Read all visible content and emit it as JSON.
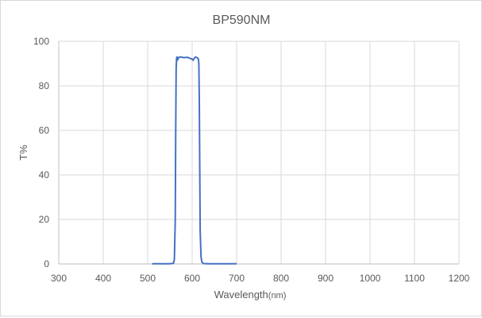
{
  "chart_data": {
    "type": "line",
    "title": "BP590NM",
    "xlabel": "Wavelength",
    "xlabel_unit": "(nm)",
    "ylabel": "T%",
    "xlim": [
      300,
      1200
    ],
    "ylim": [
      0,
      100
    ],
    "xticks": [
      300,
      400,
      500,
      600,
      700,
      800,
      900,
      1000,
      1100,
      1200
    ],
    "yticks": [
      0,
      20,
      40,
      60,
      80,
      100
    ],
    "grid": true,
    "legend": "none",
    "series": [
      {
        "color": "#4472c4",
        "points": [
          [
            510,
            0.1
          ],
          [
            550,
            0.1
          ],
          [
            558,
            0.3
          ],
          [
            560,
            2
          ],
          [
            562,
            20
          ],
          [
            563,
            60
          ],
          [
            564,
            88
          ],
          [
            565,
            92.5
          ],
          [
            566,
            93
          ],
          [
            567,
            91.5
          ],
          [
            568,
            92
          ],
          [
            570,
            92.8
          ],
          [
            575,
            93
          ],
          [
            580,
            92.7
          ],
          [
            590,
            92.8
          ],
          [
            600,
            92
          ],
          [
            602,
            91.5
          ],
          [
            605,
            92.5
          ],
          [
            608,
            93
          ],
          [
            612,
            92.5
          ],
          [
            614,
            92
          ],
          [
            615,
            90
          ],
          [
            616,
            75
          ],
          [
            617,
            45
          ],
          [
            618,
            15
          ],
          [
            620,
            3
          ],
          [
            622,
            0.8
          ],
          [
            625,
            0.2
          ],
          [
            635,
            0.1
          ],
          [
            700,
            0.1
          ]
        ]
      }
    ]
  }
}
